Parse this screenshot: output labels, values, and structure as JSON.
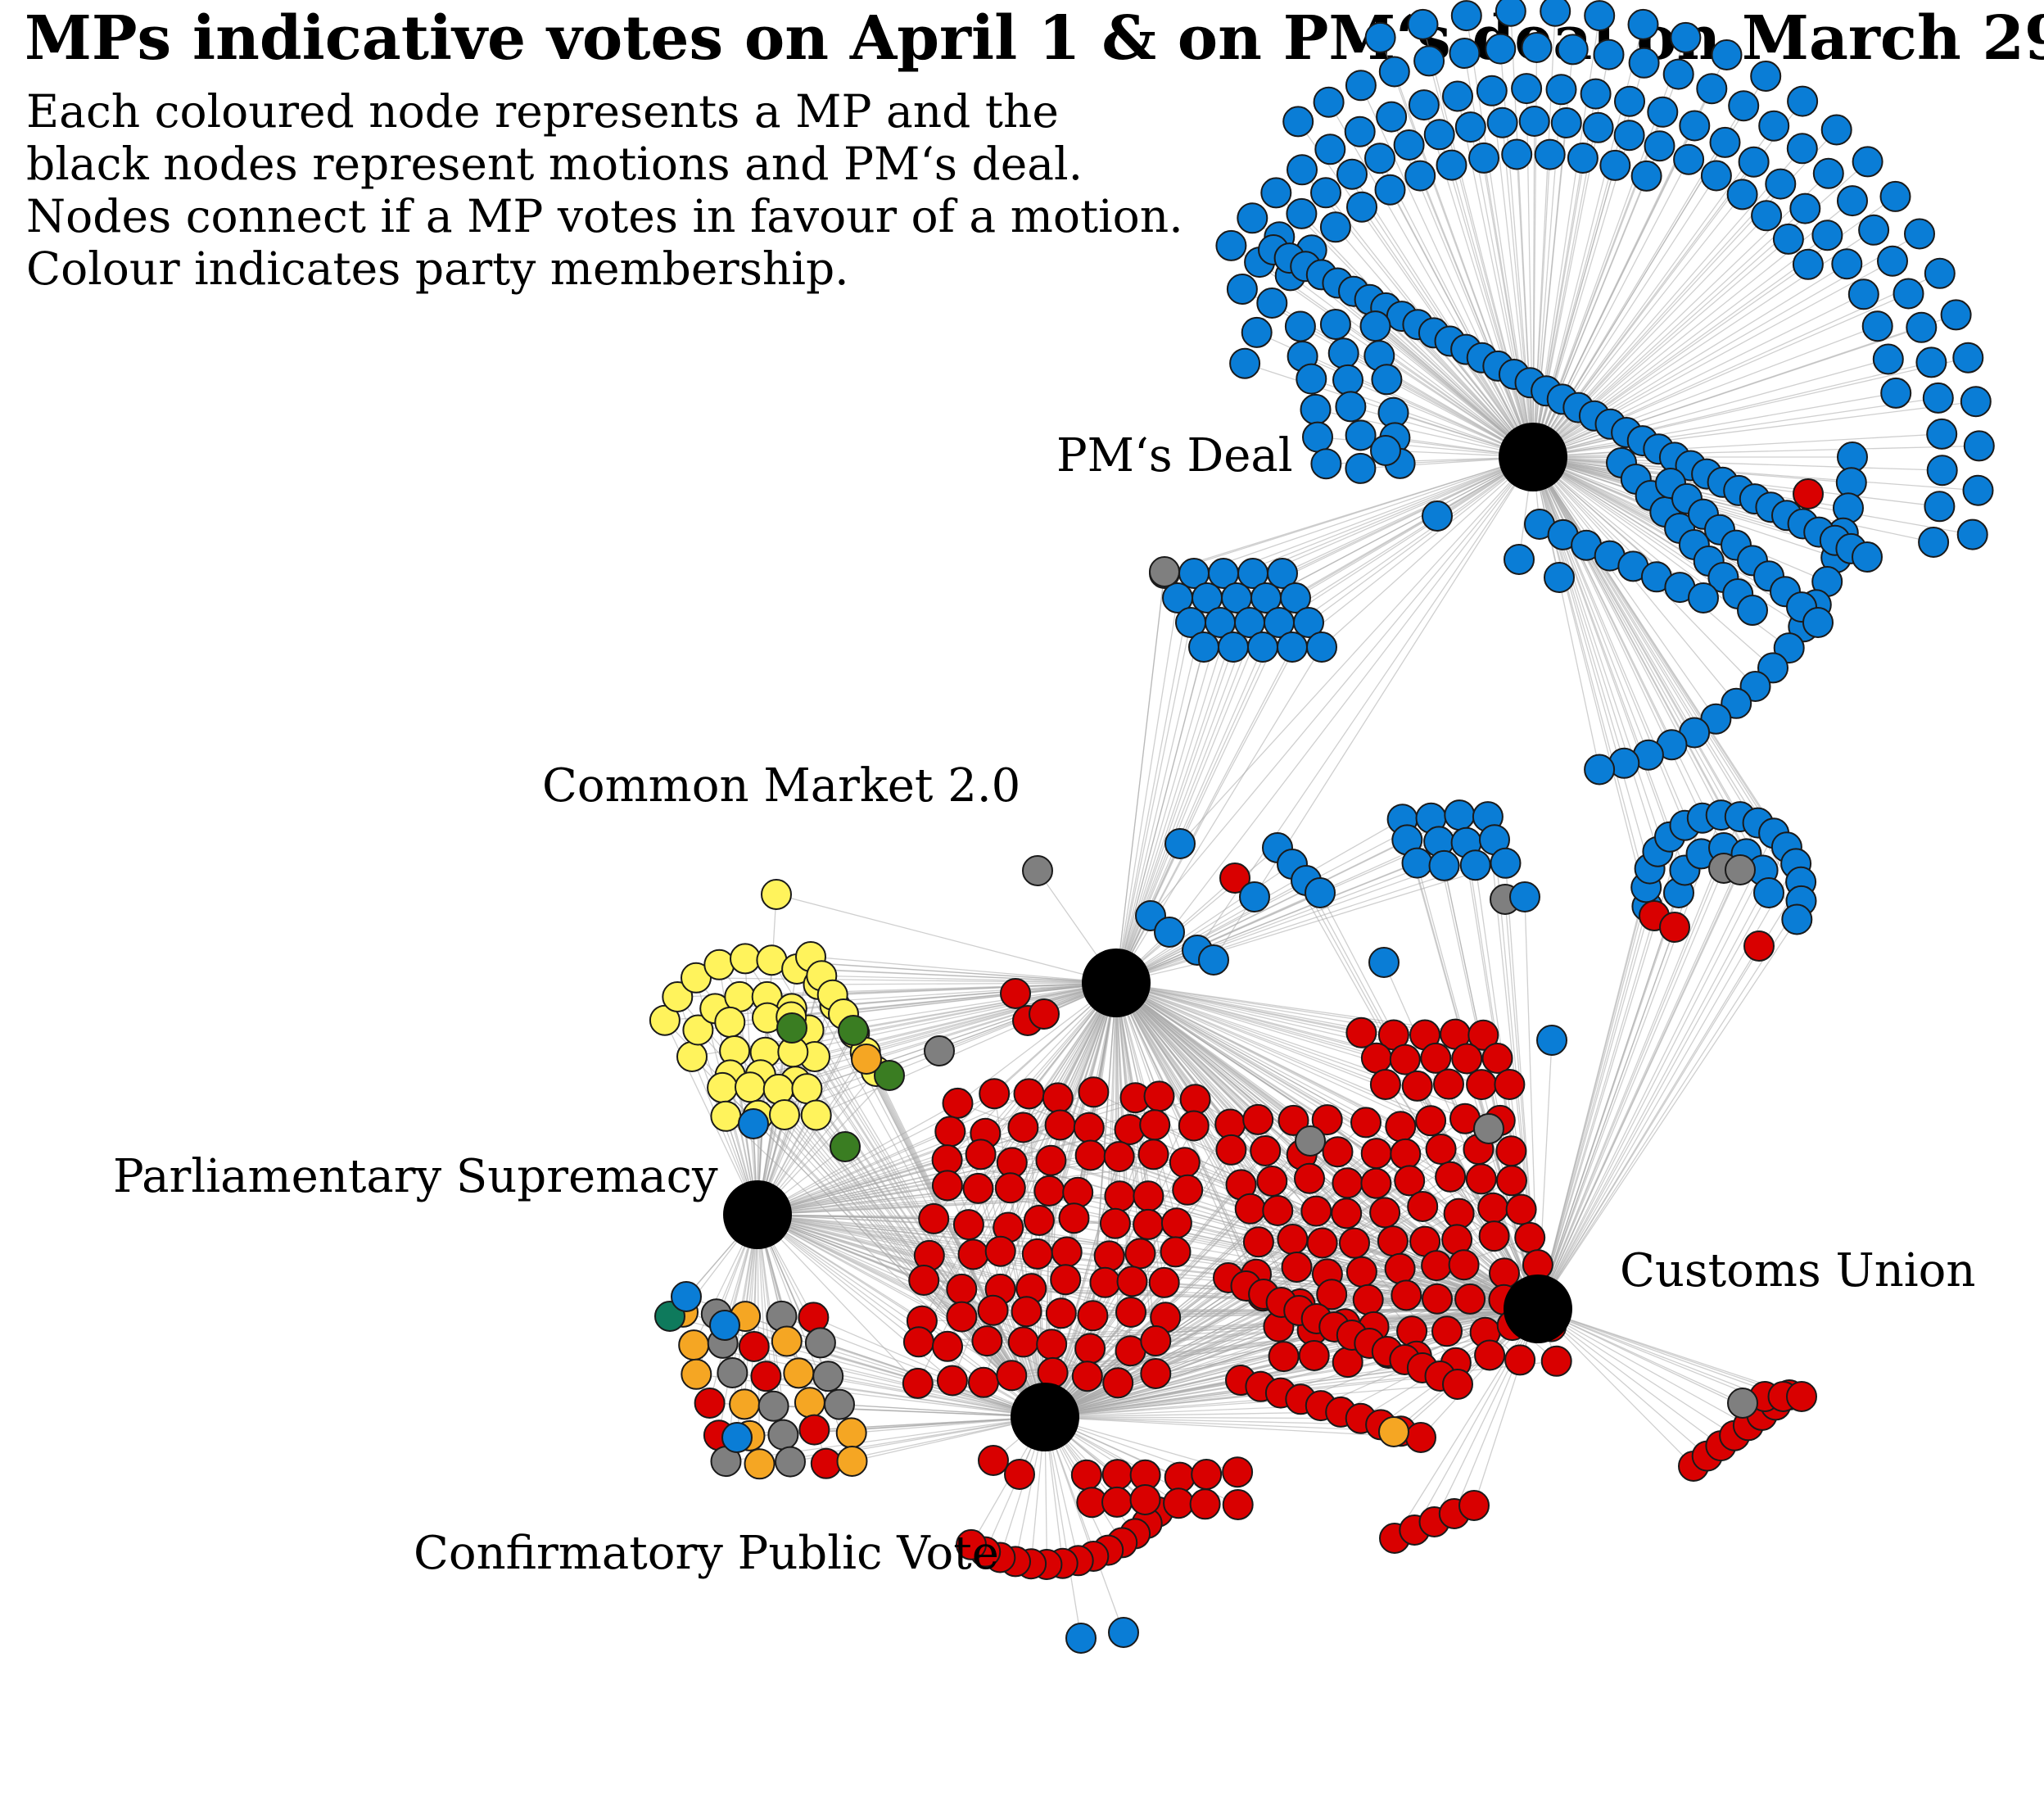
{
  "title": "MPs indicative votes on April 1 & on PM‘s deal on March 29",
  "subtitle": [
    "Each coloured node represents a MP and the",
    "black nodes represent motions and PM‘s deal.",
    "Nodes connect if a MP votes in favour of a motion.",
    "Colour indicates party membership."
  ],
  "colors": {
    "conservative": "#0a7dd6",
    "labour": "#d90000",
    "snp": "#fff35c",
    "independent": "#7f7f7f",
    "libdem": "#f5a623",
    "green_party": "#3a7d22",
    "plaid": "#0e7a5c",
    "hub": "#000000",
    "edge": "#a8a8a8"
  },
  "hubs": [
    {
      "id": "pm_deal",
      "label": "PM‘s Deal"
    },
    {
      "id": "common_market",
      "label": "Common Market 2.0"
    },
    {
      "id": "parl_supremacy",
      "label": "Parliamentary Supremacy"
    },
    {
      "id": "customs_union",
      "label": "Customs Union"
    },
    {
      "id": "public_vote",
      "label": "Confirmatory Public Vote"
    }
  ]
}
